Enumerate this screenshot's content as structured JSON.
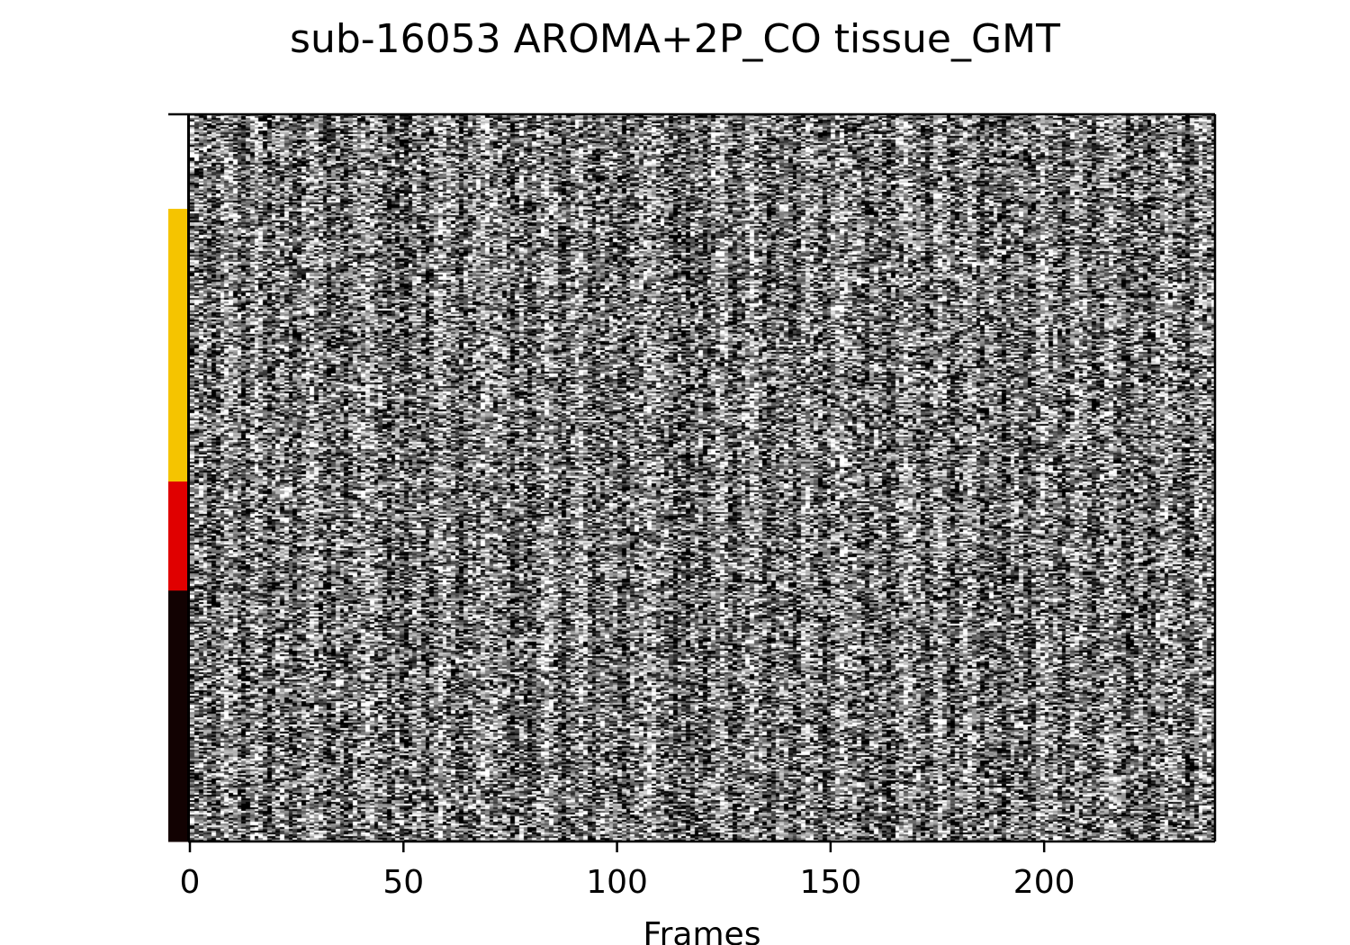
{
  "chart_data": {
    "type": "heatmap",
    "title": "sub-16053 AROMA+2P_CO tissue_GMT",
    "xlabel": "Frames",
    "ylabel": "",
    "x_range": [
      0,
      239
    ],
    "x_ticks": [
      0,
      50,
      100,
      150,
      200
    ],
    "n_frames": 240,
    "colormap": "gray",
    "grid": false,
    "legend": "none",
    "tissue_segments": [
      {
        "fraction": 0.13,
        "color": "#ffffff"
      },
      {
        "fraction": 0.375,
        "color": "#f5c400"
      },
      {
        "fraction": 0.15,
        "color": "#e00000"
      },
      {
        "fraction": 0.345,
        "color": "#120202"
      }
    ],
    "dark_frames": [
      5,
      12,
      18,
      24,
      32,
      36,
      46,
      50,
      55,
      63,
      75,
      79,
      87,
      94,
      101,
      113,
      116,
      120,
      127,
      135,
      141,
      148,
      158,
      163,
      172,
      178,
      185,
      190,
      196,
      204,
      211,
      219,
      224,
      233
    ],
    "bright_frames": [
      8,
      15,
      28,
      41,
      58,
      69,
      83,
      91,
      107,
      124,
      131,
      144,
      152,
      167,
      175,
      182,
      199,
      207,
      215,
      228,
      236
    ]
  }
}
